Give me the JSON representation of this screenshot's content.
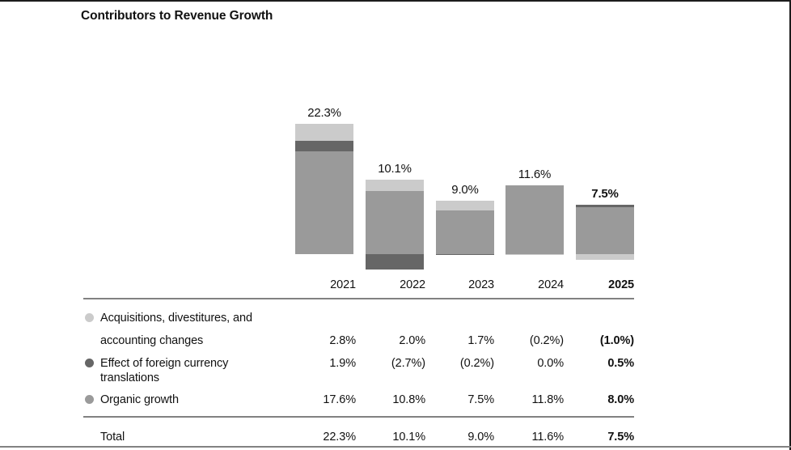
{
  "title": "Contributors to Revenue Growth",
  "colors": {
    "acquisitions": "#cbcbcb",
    "fx": "#666666",
    "organic": "#9a9a9a",
    "rule_gray": "#818181",
    "border_black": "#1c1c1c"
  },
  "chart_data": {
    "type": "bar",
    "stacked": true,
    "title": "Contributors to Revenue Growth",
    "xlabel": "",
    "ylabel": "",
    "axis_visible": false,
    "grid": false,
    "legend_position": "bottom-left-table",
    "categories": [
      "2021",
      "2022",
      "2023",
      "2024",
      "2025"
    ],
    "series": [
      {
        "name": "Acquisitions, divestitures, and accounting changes",
        "color_key": "acquisitions",
        "values": [
          2.8,
          2.0,
          1.7,
          -0.2,
          -1.0
        ]
      },
      {
        "name": "Effect of foreign currency translations",
        "color_key": "fx",
        "values": [
          1.9,
          -2.7,
          -0.2,
          0.0,
          0.5
        ]
      },
      {
        "name": "Organic growth",
        "color_key": "organic",
        "values": [
          17.6,
          10.8,
          7.5,
          11.8,
          8.0
        ]
      }
    ],
    "totals": [
      22.3,
      10.1,
      9.0,
      11.6,
      7.5
    ],
    "total_labels": [
      "22.3%",
      "10.1%",
      "9.0%",
      "11.6%",
      "7.5%"
    ]
  },
  "table": {
    "col_headers": [
      "2021",
      "2022",
      "2023",
      "2024",
      "2025"
    ],
    "rows": [
      {
        "label_line1": "Acquisitions, divestitures, and",
        "label_line2": "accounting changes",
        "bullet": "acquisitions",
        "values": [
          "2.8%",
          "2.0%",
          "1.7%",
          "(0.2%)",
          "(1.0%)"
        ]
      },
      {
        "label_line1": "Effect of foreign currency translations",
        "bullet": "fx",
        "values": [
          "1.9%",
          "(2.7%)",
          "(0.2%)",
          "0.0%",
          "0.5%"
        ]
      },
      {
        "label_line1": "Organic growth",
        "bullet": "organic",
        "values": [
          "17.6%",
          "10.8%",
          "7.5%",
          "11.8%",
          "8.0%"
        ]
      }
    ],
    "total_row": {
      "label": "Total",
      "values": [
        "22.3%",
        "10.1%",
        "9.0%",
        "11.6%",
        "7.5%"
      ]
    }
  }
}
